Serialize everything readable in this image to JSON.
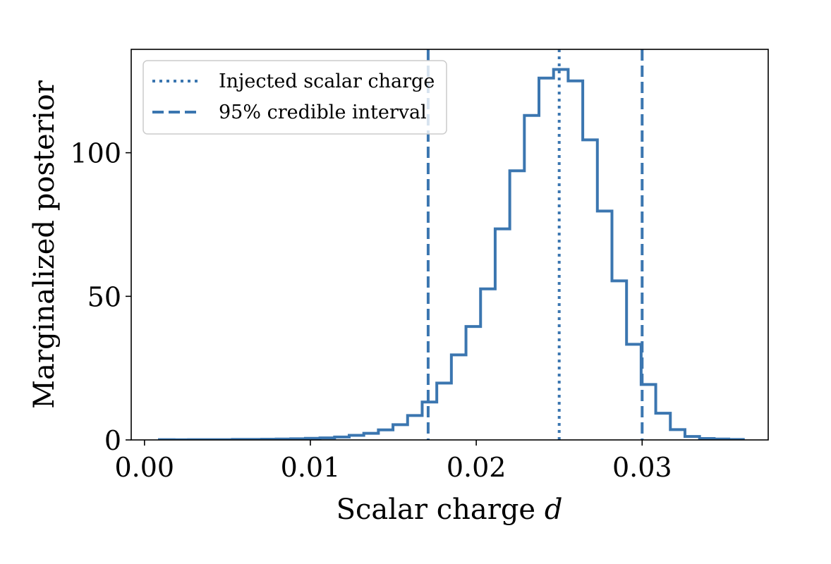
{
  "chart_data": {
    "type": "histogram",
    "xlabel": "Scalar charge d",
    "ylabel": "Marginalized posterior",
    "xlim": [
      -0.0008,
      0.0376
    ],
    "ylim": [
      0,
      136
    ],
    "x_ticks": [
      {
        "value": 0.0,
        "label": "0.00"
      },
      {
        "value": 0.01,
        "label": "0.01"
      },
      {
        "value": 0.02,
        "label": "0.02"
      },
      {
        "value": 0.03,
        "label": "0.03"
      }
    ],
    "y_ticks": [
      {
        "value": 0,
        "label": "0"
      },
      {
        "value": 50,
        "label": "50"
      },
      {
        "value": 100,
        "label": "100"
      }
    ],
    "color": "#3b76b0",
    "bin_edges": [
      0.0009,
      0.00178,
      0.00266,
      0.00354,
      0.00442,
      0.0053,
      0.00618,
      0.00706,
      0.00794,
      0.00882,
      0.0097,
      0.01058,
      0.01146,
      0.01234,
      0.01322,
      0.0141,
      0.01498,
      0.01586,
      0.01674,
      0.01762,
      0.0185,
      0.01938,
      0.02026,
      0.02114,
      0.02202,
      0.0229,
      0.02378,
      0.02466,
      0.02554,
      0.02642,
      0.0273,
      0.02818,
      0.02906,
      0.02994,
      0.03082,
      0.0317,
      0.03258,
      0.03346,
      0.03434,
      0.03522,
      0.0361
    ],
    "counts": [
      0.1,
      0.05,
      0.1,
      0.1,
      0.1,
      0.2,
      0.2,
      0.25,
      0.3,
      0.4,
      0.55,
      0.7,
      1.0,
      1.6,
      2.3,
      3.5,
      5.3,
      8.5,
      13.2,
      19.8,
      29.6,
      39.5,
      52.6,
      73.5,
      93.7,
      113.0,
      126.0,
      129.0,
      125.0,
      104.5,
      79.7,
      55.4,
      33.3,
      19.3,
      9.3,
      3.6,
      1.2,
      0.5,
      0.3,
      0.15
    ],
    "vlines": [
      {
        "name": "Injected scalar charge",
        "x": 0.025,
        "style": "dotted"
      },
      {
        "name": "95% credible interval",
        "x": 0.0171,
        "style": "dashed"
      },
      {
        "name": "95% credible interval",
        "x": 0.03,
        "style": "dashed"
      }
    ],
    "legend": {
      "position": "top-left",
      "items": [
        {
          "label": "Injected scalar charge",
          "style": "dotted"
        },
        {
          "label": "95% credible interval",
          "style": "dashed"
        }
      ]
    }
  }
}
